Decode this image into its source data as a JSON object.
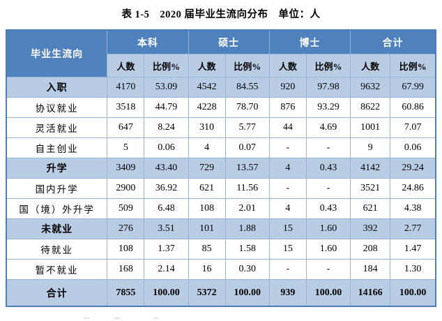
{
  "title": {
    "prefix": "表 1-5",
    "main": "2020 届毕业生流向分布",
    "unit": "单位：人"
  },
  "table": {
    "corner_header": "毕业生流向",
    "groups": [
      "本科",
      "硕士",
      "博士",
      "合计"
    ],
    "sub_headers": [
      "人数",
      "比例%",
      "人数",
      "比例%",
      "人数",
      "比例%",
      "人数",
      "比例%"
    ],
    "rows": [
      {
        "label": "入职",
        "type": "category",
        "cells": [
          "4170",
          "53.09",
          "4542",
          "84.55",
          "920",
          "97.98",
          "9632",
          "67.99"
        ]
      },
      {
        "label": "协议就业",
        "type": "sub",
        "cells": [
          "3518",
          "44.79",
          "4228",
          "78.70",
          "876",
          "93.29",
          "8622",
          "60.86"
        ]
      },
      {
        "label": "灵活就业",
        "type": "sub",
        "cells": [
          "647",
          "8.24",
          "310",
          "5.77",
          "44",
          "4.69",
          "1001",
          "7.07"
        ]
      },
      {
        "label": "自主创业",
        "type": "sub",
        "cells": [
          "5",
          "0.06",
          "4",
          "0.07",
          "-",
          "-",
          "9",
          "0.06"
        ]
      },
      {
        "label": "升学",
        "type": "category",
        "cells": [
          "3409",
          "43.40",
          "729",
          "13.57",
          "4",
          "0.43",
          "4142",
          "29.24"
        ]
      },
      {
        "label": "国内升学",
        "type": "sub",
        "cells": [
          "2900",
          "36.92",
          "621",
          "11.56",
          "-",
          "-",
          "3521",
          "24.86"
        ]
      },
      {
        "label": "国（境）外升学",
        "type": "sub",
        "cells": [
          "509",
          "6.48",
          "108",
          "2.01",
          "4",
          "0.43",
          "621",
          "4.38"
        ]
      },
      {
        "label": "未就业",
        "type": "category",
        "cells": [
          "276",
          "3.51",
          "101",
          "1.88",
          "15",
          "1.60",
          "392",
          "2.77"
        ]
      },
      {
        "label": "待就业",
        "type": "sub",
        "cells": [
          "108",
          "1.37",
          "85",
          "1.58",
          "15",
          "1.60",
          "208",
          "1.47"
        ]
      },
      {
        "label": "暂不就业",
        "type": "sub",
        "cells": [
          "168",
          "2.14",
          "16",
          "0.30",
          "-",
          "-",
          "184",
          "1.30"
        ]
      },
      {
        "label": "合计",
        "type": "total",
        "cells": [
          "7855",
          "100.00",
          "5372",
          "100.00",
          "939",
          "100.00",
          "14166",
          "100.00"
        ]
      }
    ],
    "colors": {
      "header_bg": "#4f81bd",
      "header_text": "#ffffff",
      "band_bg": "#b8cce4",
      "inner_border": "#95b3d7",
      "outer_border": "#4c7cb4",
      "body_text": "#000000"
    }
  }
}
